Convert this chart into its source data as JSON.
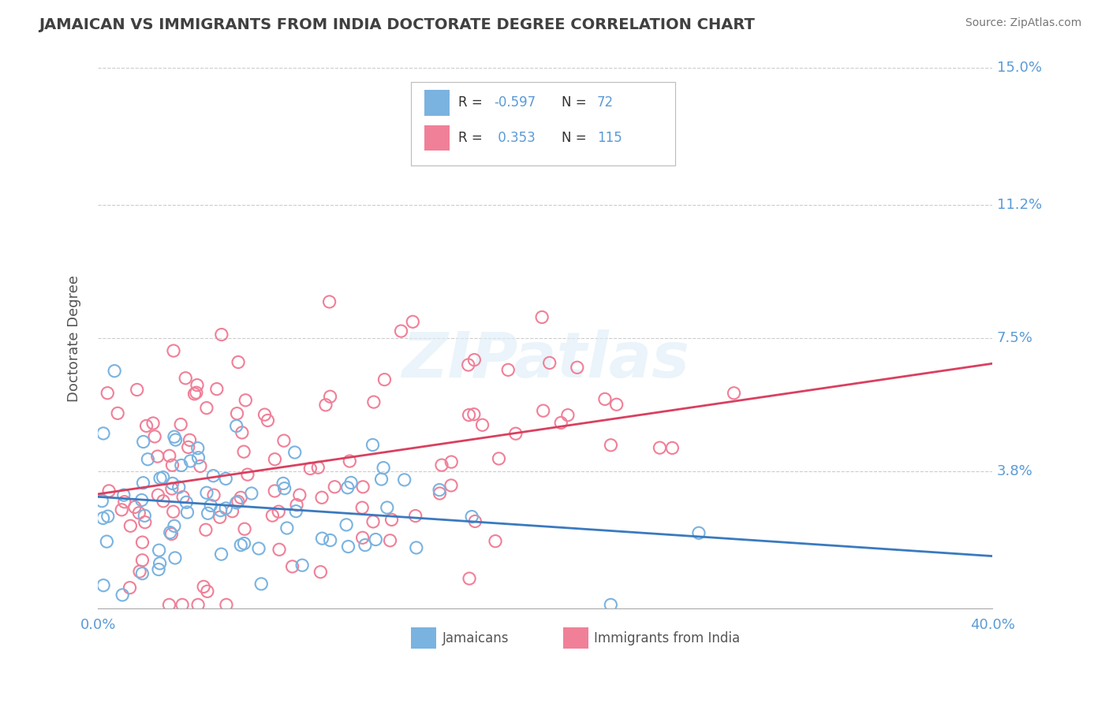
{
  "title": "JAMAICAN VS IMMIGRANTS FROM INDIA DOCTORATE DEGREE CORRELATION CHART",
  "source": "Source: ZipAtlas.com",
  "ylabel": "Doctorate Degree",
  "xlim": [
    0.0,
    0.4
  ],
  "ylim": [
    0.0,
    0.15
  ],
  "yticks": [
    0.038,
    0.075,
    0.112,
    0.15
  ],
  "ytick_labels": [
    "3.8%",
    "7.5%",
    "11.2%",
    "15.0%"
  ],
  "xtick_labels": [
    "0.0%",
    "40.0%"
  ],
  "xticks": [
    0.0,
    0.4
  ],
  "jamaicans_color": "#7ab3e0",
  "india_color": "#f08098",
  "trendline_jamaicans_color": "#3a7abf",
  "trendline_india_color": "#d94060",
  "background_color": "#ffffff",
  "grid_color": "#cccccc",
  "title_color": "#404040",
  "tick_label_color": "#5b9bd5",
  "R_jamaicans": -0.597,
  "N_jamaicans": 72,
  "R_india": 0.353,
  "N_india": 115,
  "jam_intercept": 0.032,
  "jam_slope": -0.055,
  "ind_intercept": 0.03,
  "ind_slope": 0.09
}
